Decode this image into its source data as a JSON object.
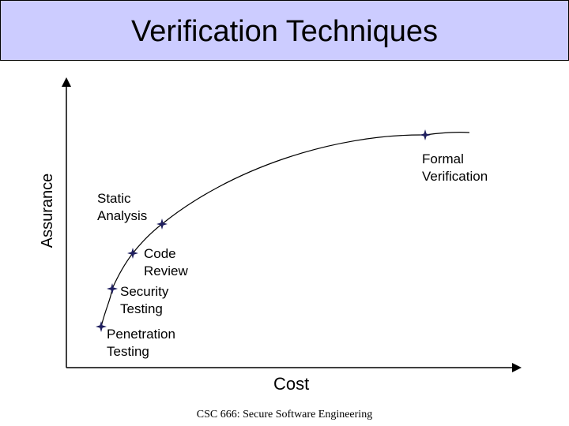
{
  "slide": {
    "title": "Verification Techniques",
    "footer": "CSC 666: Secure Software Engineering"
  },
  "axes": {
    "x_label": "Cost",
    "y_label": "Assurance"
  },
  "techniques": [
    {
      "line1": "Penetration",
      "line2": "Testing"
    },
    {
      "line1": "Security",
      "line2": "Testing"
    },
    {
      "line1": "Code",
      "line2": "Review"
    },
    {
      "line1": "Static",
      "line2": "Analysis"
    },
    {
      "line1": "Formal",
      "line2": "Verification"
    }
  ],
  "colors": {
    "title_bg": "#ccccff",
    "marker": "#1f1f5f",
    "curve": "#000000"
  }
}
